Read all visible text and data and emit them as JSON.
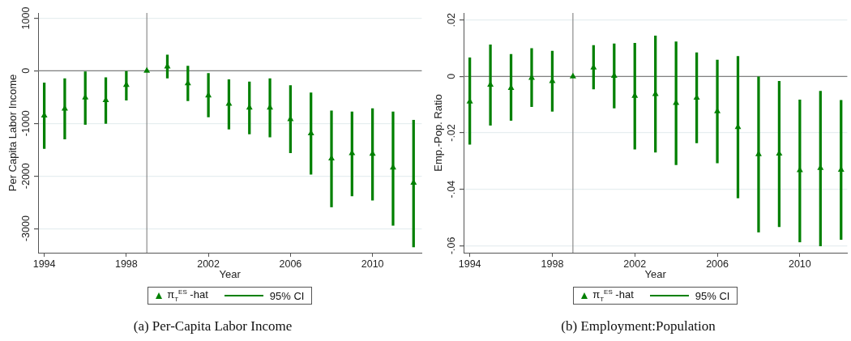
{
  "chart_data": [
    {
      "type": "scatter",
      "title": "(a) Per-Capita Labor Income",
      "xlabel": "Year",
      "ylabel": "Per Capita Labor Income",
      "x": [
        1994,
        1995,
        1996,
        1997,
        1998,
        1999,
        2000,
        2001,
        2002,
        2003,
        2004,
        2005,
        2006,
        2007,
        2008,
        2009,
        2010,
        2011,
        2012
      ],
      "series": [
        {
          "name": "π$_{T}$$^{ES}$ -hat",
          "color": "#008000",
          "values": [
            -850,
            -720,
            -510,
            -560,
            -270,
            0,
            80,
            -240,
            -470,
            -630,
            -700,
            -700,
            -920,
            -1190,
            -1670,
            -1570,
            -1580,
            -1840,
            -2130
          ]
        },
        {
          "name": "95% CI",
          "type": "bar",
          "color": "#008000",
          "base": [
            -1480,
            -1300,
            -1020,
            -1000,
            -560,
            null,
            -140,
            -570,
            -880,
            -1110,
            -1200,
            -1260,
            -1560,
            -1970,
            -2590,
            -2380,
            -2460,
            -2940,
            -3350
          ],
          "values": [
            1250,
            1150,
            1000,
            870,
            560,
            null,
            440,
            660,
            830,
            940,
            990,
            1110,
            1280,
            1550,
            1830,
            1600,
            1740,
            2160,
            2410
          ]
        }
      ],
      "xlim": [
        1993.7,
        2012.4
      ],
      "xticks": [
        1994,
        1998,
        2002,
        2006,
        2010
      ],
      "ylim": [
        -3460,
        1100
      ],
      "yticks": [
        -3000,
        -2000,
        -1000,
        0,
        1000
      ],
      "grid": "y",
      "legend": "bottom",
      "marker": "triangle",
      "ref_lines": [
        {
          "axis": "x",
          "value": 1999,
          "color": "#808080"
        },
        {
          "axis": "y",
          "value": 0,
          "color": "#808080"
        }
      ]
    },
    {
      "type": "scatter",
      "title": "(b) Employment:Population",
      "xlabel": "Year",
      "ylabel": "Emp.-Pop. Ratio",
      "x": [
        1994,
        1995,
        1996,
        1997,
        1998,
        1999,
        2000,
        2001,
        2002,
        2003,
        2004,
        2005,
        2006,
        2007,
        2008,
        2009,
        2010,
        2011,
        2012
      ],
      "series": [
        {
          "name": "π$_{T}$$^{ES}$ -hat",
          "color": "#008000",
          "values": [
            -0.0089,
            -0.003,
            -0.0041,
            -0.0005,
            -0.0017,
            0,
            0.0031,
            0.0002,
            -0.0069,
            -0.0063,
            -0.0094,
            -0.0076,
            -0.0124,
            -0.018,
            -0.0276,
            -0.0274,
            -0.0333,
            -0.0325,
            -0.0331
          ]
        },
        {
          "name": "95% CI",
          "type": "bar",
          "color": "#008000",
          "base": [
            -0.0241,
            -0.0173,
            -0.0156,
            -0.0107,
            -0.0124,
            null,
            -0.0045,
            -0.0112,
            -0.0258,
            -0.0269,
            -0.0313,
            -0.0236,
            -0.0307,
            -0.0431,
            -0.0552,
            -0.0533,
            -0.0587,
            -0.0601,
            -0.0578
          ],
          "values": [
            0.0307,
            0.0285,
            0.0234,
            0.0206,
            0.0214,
            null,
            0.0155,
            0.0228,
            0.0376,
            0.0413,
            0.0436,
            0.032,
            0.0365,
            0.0502,
            0.0552,
            0.0516,
            0.0504,
            0.0549,
            0.0493
          ]
        }
      ],
      "xlim": [
        1993.7,
        2012.3
      ],
      "xticks": [
        1994,
        1998,
        2002,
        2006,
        2010
      ],
      "ylim": [
        -0.0625,
        0.0225
      ],
      "yticks": [
        {
          "value": -0.06,
          "label": "-.06"
        },
        {
          "value": -0.04,
          "label": "-.04"
        },
        {
          "value": -0.02,
          "label": "-.02"
        },
        0,
        {
          "value": 0.02,
          "label": ".02"
        }
      ],
      "grid": "y",
      "legend": "bottom",
      "marker": "triangle",
      "ref_lines": [
        {
          "axis": "x",
          "value": 1999,
          "color": "#808080"
        },
        {
          "axis": "y",
          "value": 0,
          "color": "#808080"
        }
      ]
    }
  ]
}
